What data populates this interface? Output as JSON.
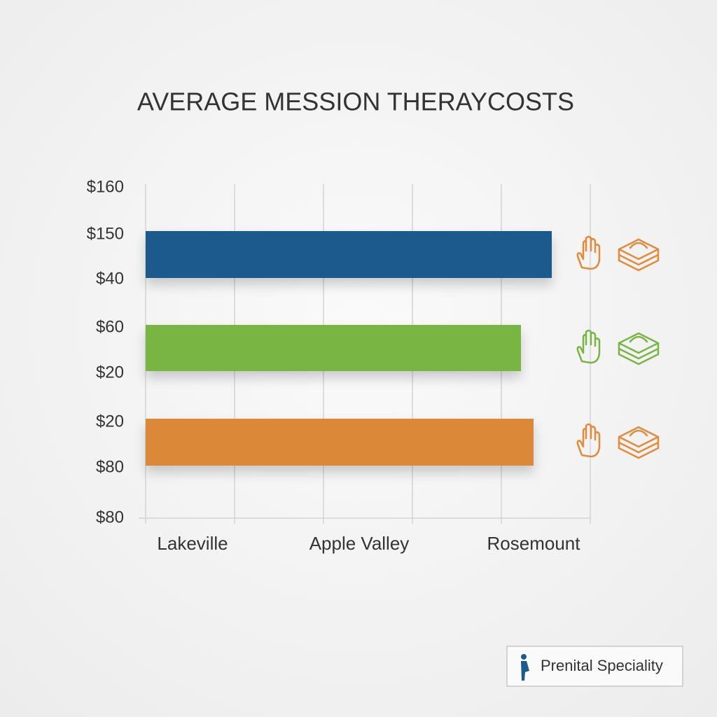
{
  "title": "AVERAGE MESSION THERAYCOSTS",
  "y_labels": [
    "$160",
    "$150",
    "$40",
    "$60",
    "$20",
    "$20",
    "$80",
    "$80"
  ],
  "x_labels": [
    "Lakeville",
    "Apple Valley",
    "Rosemount"
  ],
  "legend": "Prenital Speciality"
}
